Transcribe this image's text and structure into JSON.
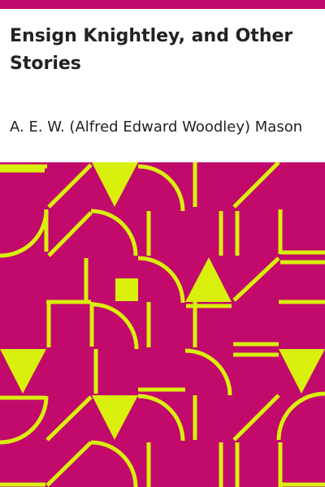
{
  "book": {
    "title": "Ensign Knightley, and Other Stories",
    "author": "A. E. W. (Alfred Edward Woodley) Mason"
  },
  "cover": {
    "background_color": "#c2096c",
    "pattern_color": "#d9ef0c",
    "top_bar_color": "#c2096c"
  }
}
